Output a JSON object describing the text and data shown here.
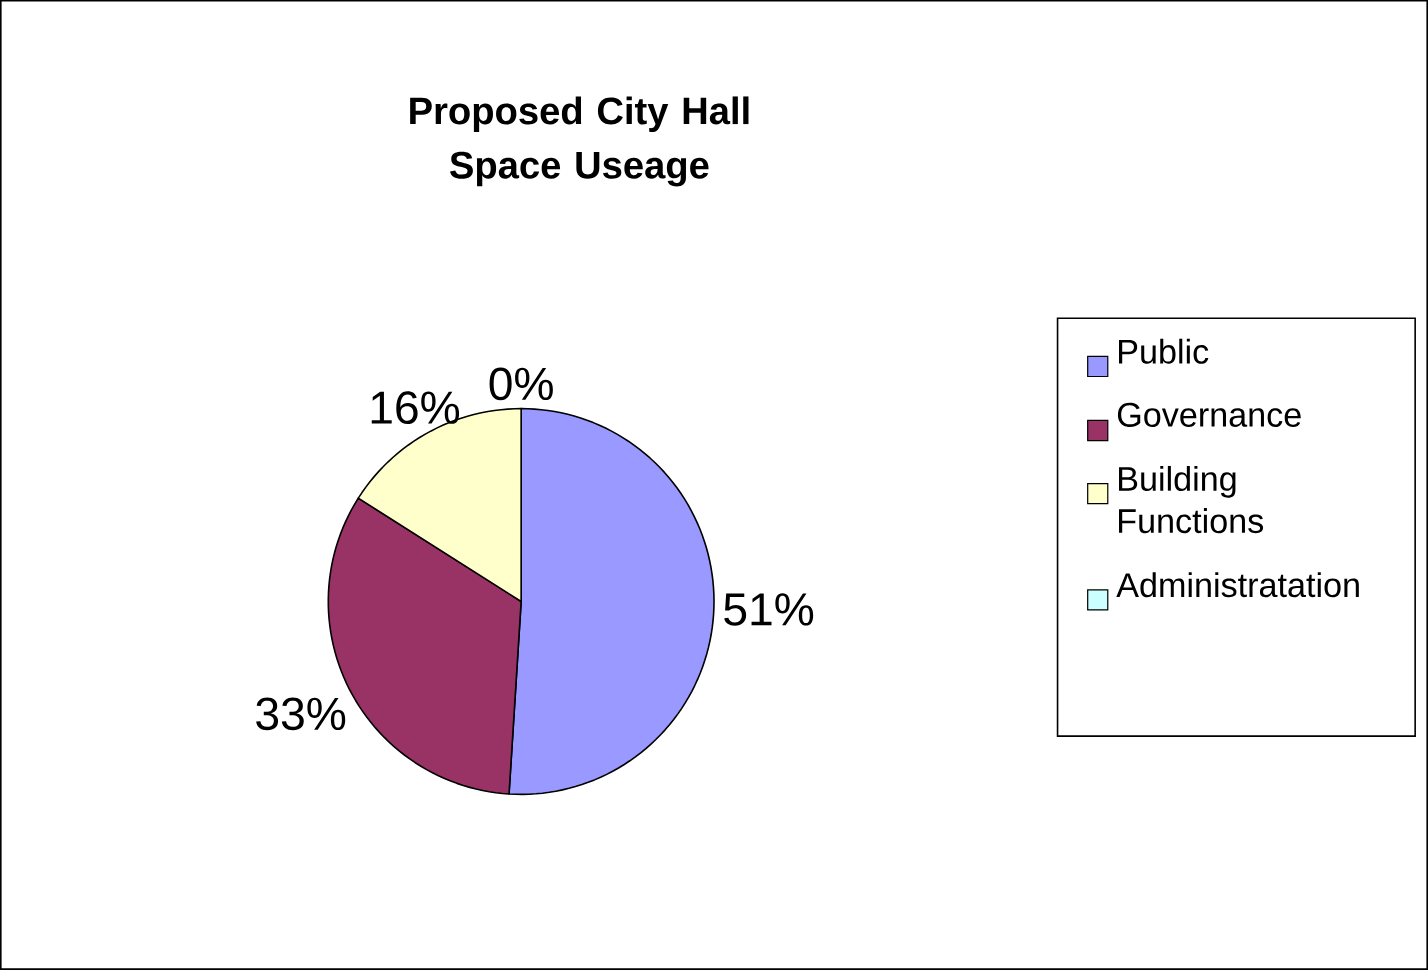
{
  "chart_data": {
    "type": "pie",
    "title": "Proposed City Hall Space Useage",
    "categories": [
      "Public",
      "Governance",
      "Building Functions",
      "Administratation"
    ],
    "values": [
      51,
      33,
      16,
      0
    ],
    "colors": [
      "#9999ff",
      "#993366",
      "#ffffcc",
      "#ccffff"
    ],
    "value_labels": [
      "51%",
      "33%",
      "16%",
      "0%"
    ],
    "legend": "right"
  }
}
